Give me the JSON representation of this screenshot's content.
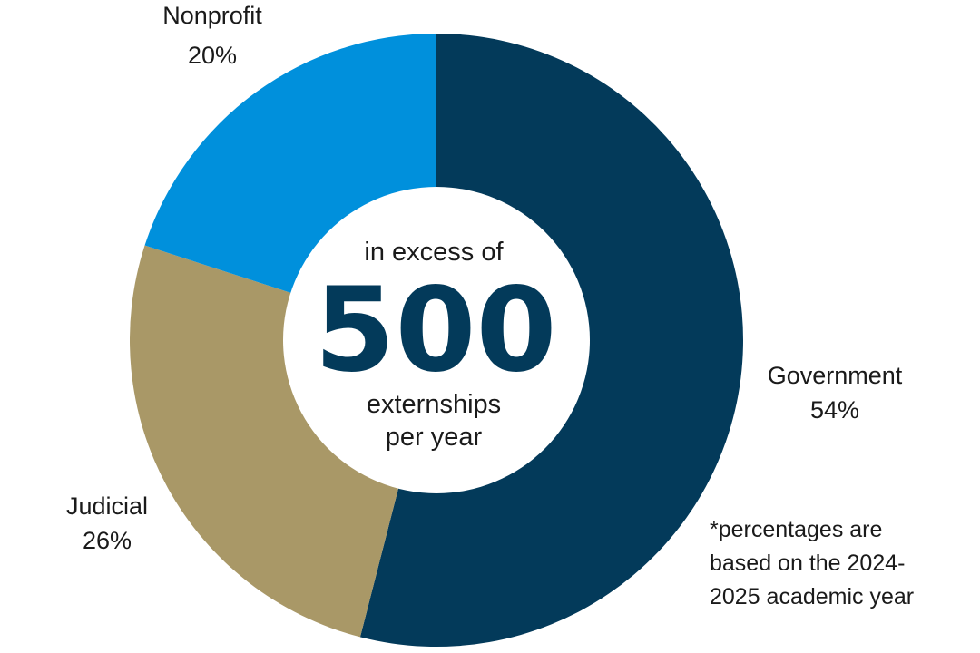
{
  "chart_data": {
    "type": "pie",
    "donut": true,
    "categories": [
      "Government",
      "Judicial",
      "Nonprofit"
    ],
    "values": [
      54,
      26,
      20
    ],
    "labels": [
      {
        "name": "Government",
        "percent": "54%"
      },
      {
        "name": "Judicial",
        "percent": "26%"
      },
      {
        "name": "Nonprofit",
        "percent": "20%"
      }
    ],
    "colors": [
      "#033a5a",
      "#a99867",
      "#0090dc"
    ],
    "center": {
      "line1": "in excess of",
      "number": "500",
      "line2": "externships",
      "line3": "per year",
      "number_color": "#033a5a"
    },
    "footnote": [
      "*percentages are",
      "based on the 2024-",
      "2025 academic year"
    ]
  }
}
